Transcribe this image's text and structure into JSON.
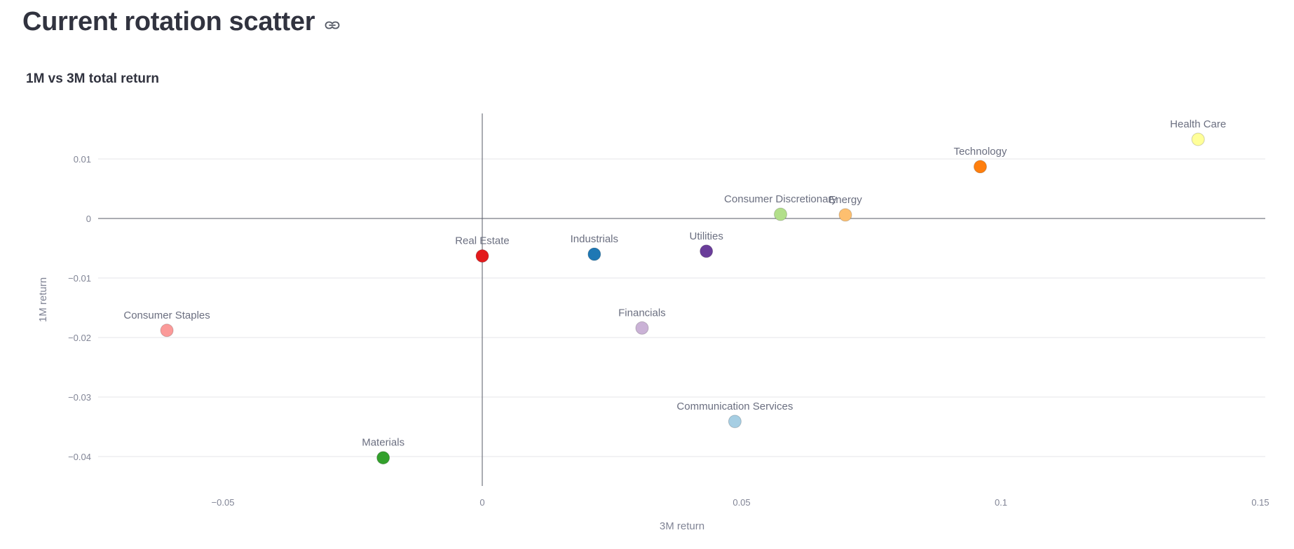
{
  "page": {
    "title": "Current rotation scatter",
    "anchor_icon": "link-icon"
  },
  "chart_data": {
    "type": "scatter",
    "title": "1M vs 3M total return",
    "xlabel": "3M return",
    "ylabel": "1M return",
    "xlim": [
      -0.075,
      0.15
    ],
    "ylim": [
      -0.045,
      0.018
    ],
    "xticks": [
      -0.05,
      0,
      0.05,
      0.1,
      0.15
    ],
    "xtick_labels": [
      "−0.05",
      "0",
      "0.05",
      "0.1",
      "0.15"
    ],
    "yticks": [
      0.01,
      0,
      -0.01,
      -0.02,
      -0.03,
      -0.04
    ],
    "ytick_labels": [
      "0.01",
      "0",
      "−0.01",
      "−0.02",
      "−0.03",
      "−0.04"
    ],
    "grid": "horizontal",
    "points": [
      {
        "name": "Health Care",
        "x": 0.138,
        "y": 0.0133,
        "color": "#ffff99"
      },
      {
        "name": "Technology",
        "x": 0.096,
        "y": 0.0087,
        "color": "#ff7f0e"
      },
      {
        "name": "Consumer Discretionary",
        "x": 0.0575,
        "y": 0.0007,
        "color": "#b2df8a"
      },
      {
        "name": "Energy",
        "x": 0.07,
        "y": 0.0006,
        "color": "#fdbf6f"
      },
      {
        "name": "Real Estate",
        "x": 0.0,
        "y": -0.0063,
        "color": "#e31a1c"
      },
      {
        "name": "Industrials",
        "x": 0.0216,
        "y": -0.006,
        "color": "#1f78b4"
      },
      {
        "name": "Utilities",
        "x": 0.0432,
        "y": -0.0055,
        "color": "#6a3d9a"
      },
      {
        "name": "Consumer Staples",
        "x": -0.0608,
        "y": -0.0188,
        "color": "#fb9a99"
      },
      {
        "name": "Financials",
        "x": 0.0308,
        "y": -0.0184,
        "color": "#cab2d6"
      },
      {
        "name": "Communication Services",
        "x": 0.0487,
        "y": -0.0341,
        "color": "#a6cee3"
      },
      {
        "name": "Materials",
        "x": -0.0191,
        "y": -0.0402,
        "color": "#33a02c"
      }
    ]
  }
}
